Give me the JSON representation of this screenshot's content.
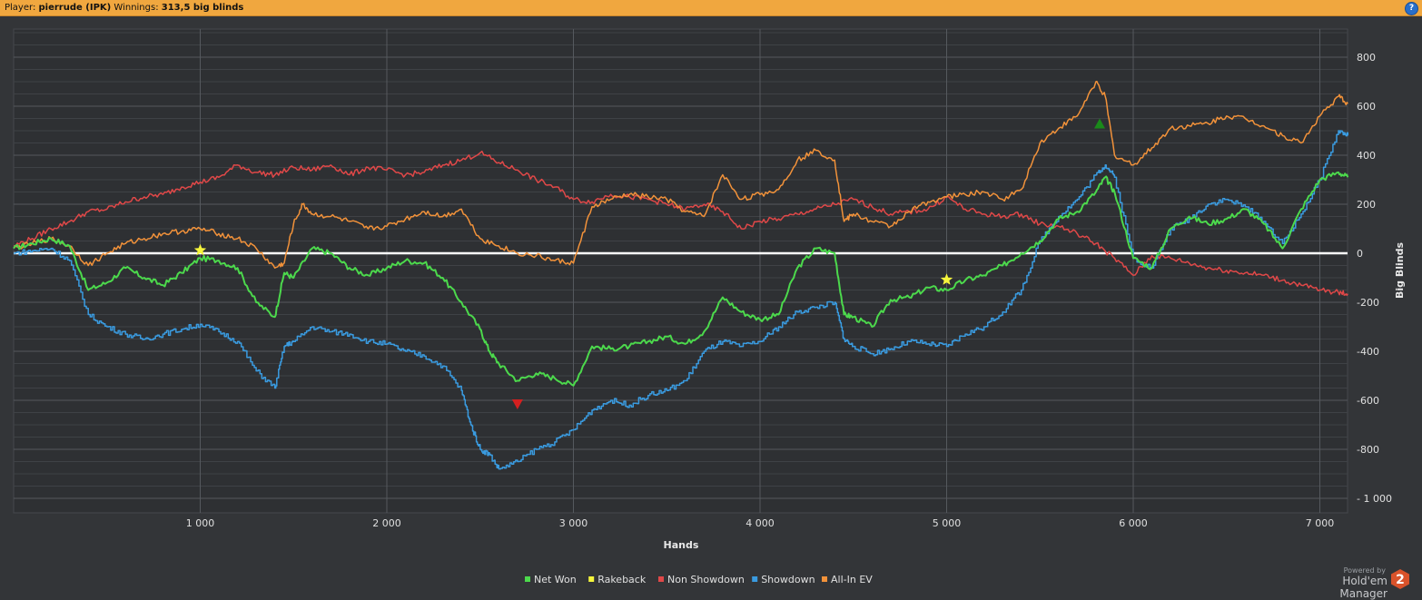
{
  "header": {
    "player_label": "Player:",
    "player_name": "pierrude (IPK)",
    "winnings_label": "Winnings:",
    "winnings_value": "313,5 big blinds",
    "help_symbol": "?"
  },
  "footer": {
    "powered_by": "Powered by",
    "brand": "Hold'em Manager",
    "brand_version": "2"
  },
  "chart_data": {
    "type": "line",
    "xlabel": "Hands",
    "ylabel": "Big Blinds",
    "xlim": [
      0,
      7150
    ],
    "ylim": [
      -1000,
      900
    ],
    "x_ticks": [
      1000,
      2000,
      3000,
      4000,
      5000,
      6000,
      7000
    ],
    "x_tick_labels": [
      "1 000",
      "2 000",
      "3 000",
      "4 000",
      "5 000",
      "6 000",
      "7 000"
    ],
    "y_ticks": [
      800,
      600,
      400,
      200,
      0,
      -200,
      -400,
      -600,
      -800,
      -1000
    ],
    "y_tick_labels": [
      "800",
      "600",
      "400",
      "200",
      "0",
      "-200",
      "-400",
      "-600",
      "-800",
      "- 1 000"
    ],
    "grid": true,
    "legend_position": "bottom-center",
    "series": [
      {
        "name": "Net Won",
        "color": "#4cd94c",
        "x": [
          0,
          100,
          200,
          300,
          400,
          500,
          600,
          700,
          800,
          900,
          1000,
          1100,
          1200,
          1300,
          1400,
          1450,
          1500,
          1600,
          1700,
          1800,
          1900,
          2000,
          2100,
          2200,
          2300,
          2400,
          2500,
          2550,
          2600,
          2700,
          2800,
          2900,
          3000,
          3100,
          3200,
          3300,
          3400,
          3500,
          3600,
          3700,
          3800,
          3900,
          4000,
          4100,
          4200,
          4300,
          4400,
          4450,
          4500,
          4600,
          4700,
          4800,
          4900,
          5000,
          5100,
          5200,
          5300,
          5400,
          5500,
          5600,
          5700,
          5800,
          5850,
          5900,
          6000,
          6100,
          6200,
          6300,
          6400,
          6500,
          6600,
          6700,
          6800,
          6900,
          7000,
          7100,
          7150
        ],
        "y": [
          20,
          40,
          60,
          30,
          -150,
          -120,
          -60,
          -100,
          -130,
          -80,
          -20,
          -30,
          -60,
          -200,
          -260,
          -80,
          -100,
          20,
          0,
          -60,
          -90,
          -60,
          -30,
          -40,
          -100,
          -200,
          -310,
          -400,
          -450,
          -520,
          -490,
          -510,
          -540,
          -380,
          -390,
          -380,
          -360,
          -340,
          -370,
          -320,
          -180,
          -240,
          -270,
          -250,
          -60,
          20,
          0,
          -250,
          -260,
          -300,
          -190,
          -180,
          -140,
          -150,
          -110,
          -90,
          -50,
          0,
          50,
          140,
          170,
          250,
          310,
          250,
          -20,
          -60,
          100,
          150,
          120,
          140,
          180,
          120,
          20,
          180,
          300,
          330,
          310
        ]
      },
      {
        "name": "Rakeback",
        "color": "#f5f53c",
        "x": [
          1000,
          5000
        ],
        "y": [
          12,
          -108
        ]
      },
      {
        "name": "Non Showdown",
        "color": "#e04848",
        "x": [
          0,
          100,
          200,
          300,
          400,
          500,
          600,
          700,
          800,
          900,
          1000,
          1100,
          1200,
          1300,
          1400,
          1500,
          1600,
          1700,
          1800,
          1900,
          2000,
          2100,
          2200,
          2300,
          2400,
          2500,
          2600,
          2700,
          2800,
          2900,
          3000,
          3100,
          3200,
          3300,
          3400,
          3500,
          3600,
          3700,
          3800,
          3900,
          4000,
          4100,
          4200,
          4300,
          4400,
          4500,
          4600,
          4700,
          4800,
          4900,
          5000,
          5100,
          5200,
          5300,
          5400,
          5500,
          5600,
          5700,
          5800,
          5900,
          6000,
          6100,
          6200,
          6300,
          6400,
          6500,
          6600,
          6700,
          6800,
          6900,
          7000,
          7100,
          7150
        ],
        "y": [
          30,
          60,
          100,
          130,
          170,
          180,
          210,
          230,
          240,
          270,
          290,
          310,
          360,
          330,
          320,
          350,
          340,
          360,
          320,
          350,
          340,
          320,
          330,
          360,
          380,
          410,
          370,
          340,
          300,
          270,
          220,
          210,
          240,
          230,
          220,
          200,
          180,
          200,
          170,
          100,
          130,
          140,
          160,
          180,
          200,
          220,
          190,
          160,
          170,
          180,
          230,
          180,
          160,
          150,
          160,
          120,
          110,
          80,
          40,
          -20,
          -90,
          -10,
          -20,
          -40,
          -60,
          -70,
          -80,
          -90,
          -110,
          -130,
          -150,
          -160,
          -165
        ]
      },
      {
        "name": "Showdown",
        "color": "#3a9be0",
        "x": [
          0,
          100,
          200,
          300,
          400,
          500,
          600,
          700,
          800,
          900,
          1000,
          1100,
          1200,
          1300,
          1400,
          1450,
          1500,
          1600,
          1700,
          1800,
          1900,
          2000,
          2100,
          2200,
          2300,
          2400,
          2450,
          2500,
          2550,
          2600,
          2700,
          2800,
          2900,
          3000,
          3100,
          3200,
          3300,
          3400,
          3500,
          3600,
          3700,
          3800,
          3900,
          4000,
          4100,
          4200,
          4300,
          4400,
          4450,
          4500,
          4600,
          4700,
          4800,
          4900,
          5000,
          5100,
          5200,
          5300,
          5400,
          5500,
          5600,
          5700,
          5800,
          5850,
          5900,
          6000,
          6100,
          6200,
          6300,
          6400,
          6500,
          6600,
          6700,
          6800,
          6900,
          7000,
          7100,
          7150
        ],
        "y": [
          0,
          10,
          20,
          -30,
          -250,
          -300,
          -330,
          -350,
          -330,
          -310,
          -290,
          -320,
          -360,
          -480,
          -550,
          -380,
          -360,
          -300,
          -320,
          -330,
          -360,
          -370,
          -400,
          -420,
          -460,
          -560,
          -700,
          -800,
          -820,
          -880,
          -850,
          -800,
          -770,
          -720,
          -640,
          -600,
          -620,
          -580,
          -560,
          -520,
          -400,
          -360,
          -380,
          -360,
          -300,
          -240,
          -220,
          -200,
          -350,
          -380,
          -410,
          -390,
          -360,
          -370,
          -380,
          -330,
          -300,
          -240,
          -150,
          50,
          150,
          220,
          320,
          360,
          310,
          -20,
          -60,
          100,
          140,
          200,
          220,
          190,
          130,
          40,
          160,
          300,
          500,
          480
        ]
      },
      {
        "name": "All-In EV",
        "color": "#f2923a",
        "x": [
          0,
          100,
          200,
          300,
          400,
          500,
          600,
          700,
          800,
          900,
          1000,
          1100,
          1200,
          1300,
          1400,
          1450,
          1500,
          1550,
          1600,
          1700,
          1800,
          1900,
          2000,
          2100,
          2200,
          2300,
          2400,
          2500,
          2600,
          2700,
          2800,
          2900,
          3000,
          3100,
          3200,
          3300,
          3400,
          3500,
          3600,
          3700,
          3800,
          3900,
          4000,
          4100,
          4200,
          4300,
          4400,
          4450,
          4500,
          4600,
          4700,
          4800,
          4900,
          5000,
          5100,
          5200,
          5300,
          5400,
          5500,
          5600,
          5700,
          5800,
          5850,
          5900,
          6000,
          6100,
          6200,
          6300,
          6400,
          6500,
          6600,
          6700,
          6800,
          6900,
          7000,
          7100,
          7150
        ],
        "y": [
          20,
          40,
          60,
          30,
          -50,
          0,
          40,
          60,
          80,
          90,
          100,
          80,
          60,
          20,
          -60,
          -40,
          120,
          200,
          160,
          150,
          130,
          100,
          110,
          140,
          170,
          150,
          180,
          60,
          30,
          0,
          -10,
          -30,
          -40,
          190,
          220,
          240,
          230,
          220,
          170,
          150,
          320,
          220,
          240,
          260,
          380,
          420,
          380,
          130,
          160,
          130,
          110,
          170,
          210,
          230,
          240,
          250,
          220,
          260,
          450,
          510,
          560,
          700,
          640,
          400,
          360,
          430,
          510,
          520,
          530,
          560,
          550,
          520,
          480,
          450,
          560,
          640,
          610
        ]
      }
    ],
    "markers": [
      {
        "type": "star",
        "color": "#f5f53c",
        "x": 1000,
        "y": 12
      },
      {
        "type": "star",
        "color": "#f5f53c",
        "x": 5000,
        "y": -108
      },
      {
        "type": "triangle-down",
        "color": "#d42020",
        "x": 2700,
        "y": -615
      },
      {
        "type": "triangle-up",
        "color": "#1a8a1a",
        "x": 5820,
        "y": 528
      }
    ]
  }
}
